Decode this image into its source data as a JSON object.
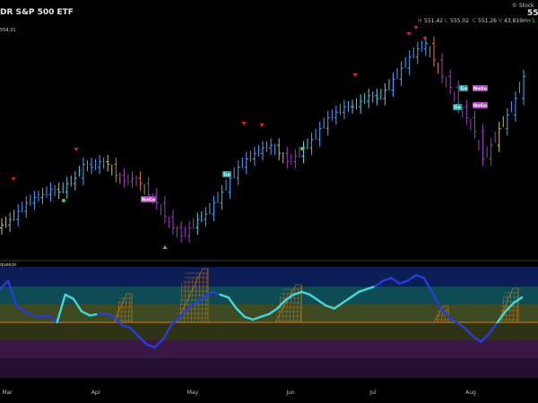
{
  "header": {
    "title": "DR S&P 500 ETF",
    "brand": "© Stock",
    "price_badge": "55",
    "ohlc_labels": [
      "H",
      "L",
      "C",
      "V"
    ],
    "ohlc_values": [
      "551.42",
      "555.02",
      "551.26",
      "43.819m"
    ],
    "change": "+1.",
    "price_tag": "554.31"
  },
  "lower_panel": {
    "label": "queeze"
  },
  "chart_data": {
    "type": "candlestick",
    "x_tick_labels": [
      "Mar",
      "Apr",
      "May",
      "Jun",
      "Jul",
      "Aug"
    ],
    "signals": [
      "NoGo",
      "Go",
      "Go",
      "NoGo",
      "Go",
      "Go",
      "NoGo"
    ],
    "price_series": [
      {
        "t": 0,
        "c": 498
      },
      {
        "t": 2,
        "c": 500
      },
      {
        "t": 4,
        "c": 503
      },
      {
        "t": 6,
        "c": 506
      },
      {
        "t": 8,
        "c": 508
      },
      {
        "t": 10,
        "c": 509
      },
      {
        "t": 12,
        "c": 511
      },
      {
        "t": 14,
        "c": 510
      },
      {
        "t": 16,
        "c": 513
      },
      {
        "t": 18,
        "c": 515
      },
      {
        "t": 20,
        "c": 520
      },
      {
        "t": 22,
        "c": 519
      },
      {
        "t": 24,
        "c": 521
      },
      {
        "t": 26,
        "c": 520
      },
      {
        "t": 28,
        "c": 516
      },
      {
        "t": 30,
        "c": 514
      },
      {
        "t": 32,
        "c": 515
      },
      {
        "t": 34,
        "c": 513
      },
      {
        "t": 36,
        "c": 509
      },
      {
        "t": 38,
        "c": 506
      },
      {
        "t": 40,
        "c": 501
      },
      {
        "t": 42,
        "c": 497
      },
      {
        "t": 44,
        "c": 494
      },
      {
        "t": 46,
        "c": 497
      },
      {
        "t": 48,
        "c": 500
      },
      {
        "t": 50,
        "c": 502
      },
      {
        "t": 52,
        "c": 506
      },
      {
        "t": 54,
        "c": 510
      },
      {
        "t": 56,
        "c": 515
      },
      {
        "t": 58,
        "c": 519
      },
      {
        "t": 60,
        "c": 522
      },
      {
        "t": 62,
        "c": 524
      },
      {
        "t": 64,
        "c": 526
      },
      {
        "t": 66,
        "c": 527
      },
      {
        "t": 68,
        "c": 524
      },
      {
        "t": 70,
        "c": 521
      },
      {
        "t": 72,
        "c": 523
      },
      {
        "t": 74,
        "c": 526
      },
      {
        "t": 76,
        "c": 529
      },
      {
        "t": 78,
        "c": 533
      },
      {
        "t": 80,
        "c": 537
      },
      {
        "t": 82,
        "c": 539
      },
      {
        "t": 84,
        "c": 541
      },
      {
        "t": 86,
        "c": 541
      },
      {
        "t": 88,
        "c": 543
      },
      {
        "t": 90,
        "c": 545
      },
      {
        "t": 92,
        "c": 544
      },
      {
        "t": 94,
        "c": 547
      },
      {
        "t": 96,
        "c": 551
      },
      {
        "t": 98,
        "c": 555
      },
      {
        "t": 100,
        "c": 559
      },
      {
        "t": 102,
        "c": 562
      },
      {
        "t": 104,
        "c": 564
      },
      {
        "t": 106,
        "c": 558
      },
      {
        "t": 108,
        "c": 552
      },
      {
        "t": 110,
        "c": 548
      },
      {
        "t": 112,
        "c": 541
      },
      {
        "t": 114,
        "c": 537
      },
      {
        "t": 116,
        "c": 532
      },
      {
        "t": 118,
        "c": 522
      },
      {
        "t": 120,
        "c": 527
      },
      {
        "t": 122,
        "c": 533
      },
      {
        "t": 124,
        "c": 538
      },
      {
        "t": 126,
        "c": 544
      },
      {
        "t": 128,
        "c": 552
      }
    ],
    "oscillator": [
      64,
      70,
      52,
      48,
      45,
      44,
      45,
      40,
      60,
      57,
      48,
      45,
      46,
      46,
      44,
      38,
      36,
      30,
      24,
      22,
      28,
      38,
      44,
      50,
      54,
      58,
      62,
      60,
      58,
      50,
      44,
      42,
      44,
      46,
      50,
      56,
      60,
      62,
      60,
      56,
      52,
      50,
      54,
      58,
      62,
      64,
      66,
      70,
      72,
      68,
      70,
      74,
      72,
      62,
      50,
      44,
      40,
      36,
      30,
      26,
      32,
      40,
      48,
      54,
      58
    ]
  }
}
